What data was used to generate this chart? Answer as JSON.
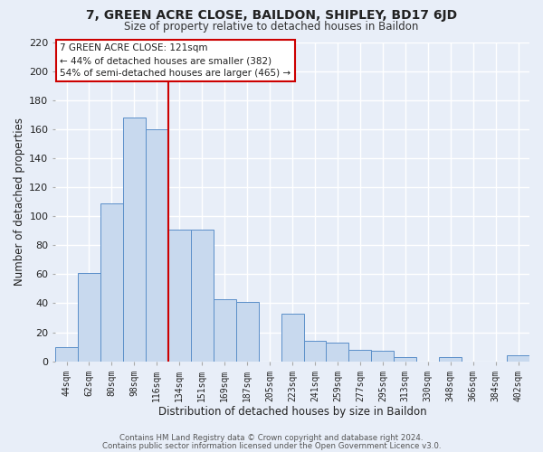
{
  "title": "7, GREEN ACRE CLOSE, BAILDON, SHIPLEY, BD17 6JD",
  "subtitle": "Size of property relative to detached houses in Baildon",
  "xlabel": "Distribution of detached houses by size in Baildon",
  "ylabel": "Number of detached properties",
  "categories": [
    "44sqm",
    "62sqm",
    "80sqm",
    "98sqm",
    "116sqm",
    "134sqm",
    "151sqm",
    "169sqm",
    "187sqm",
    "205sqm",
    "223sqm",
    "241sqm",
    "259sqm",
    "277sqm",
    "295sqm",
    "313sqm",
    "330sqm",
    "348sqm",
    "366sqm",
    "384sqm",
    "402sqm"
  ],
  "values": [
    10,
    61,
    109,
    168,
    160,
    91,
    91,
    43,
    41,
    0,
    33,
    14,
    13,
    8,
    7,
    3,
    0,
    3,
    0,
    0,
    4
  ],
  "bar_color": "#c8d9ee",
  "bar_edge_color": "#5b8fc9",
  "vline_x_index": 4,
  "vline_color": "#cc0000",
  "ylim": [
    0,
    220
  ],
  "yticks": [
    0,
    20,
    40,
    60,
    80,
    100,
    120,
    140,
    160,
    180,
    200,
    220
  ],
  "annotation_title": "7 GREEN ACRE CLOSE: 121sqm",
  "annotation_line1": "← 44% of detached houses are smaller (382)",
  "annotation_line2": "54% of semi-detached houses are larger (465) →",
  "annotation_box_color": "#ffffff",
  "annotation_box_edge": "#cc0000",
  "footer1": "Contains HM Land Registry data © Crown copyright and database right 2024.",
  "footer2": "Contains public sector information licensed under the Open Government Licence v3.0.",
  "background_color": "#e8eef8",
  "grid_color": "#ffffff"
}
